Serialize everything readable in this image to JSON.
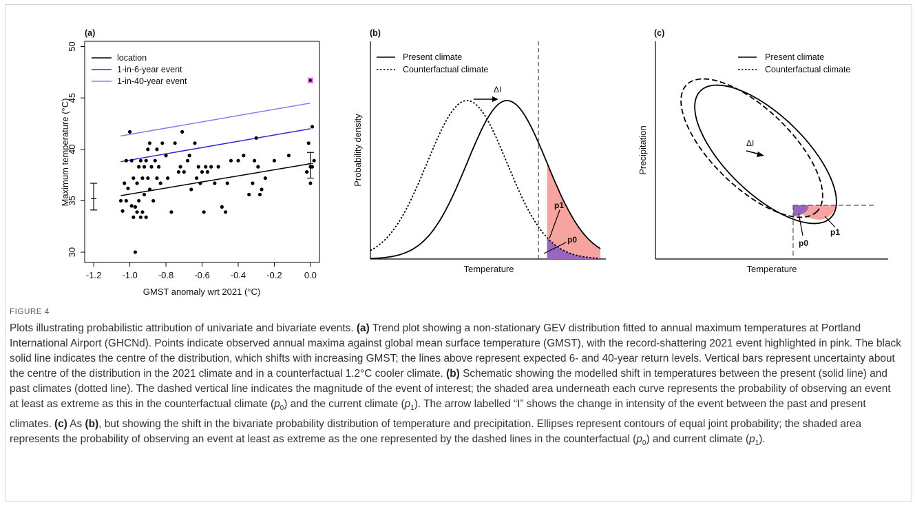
{
  "figure_label": "FIGURE 4",
  "caption": {
    "intro": "Plots illustrating probabilistic attribution of univariate and bivariate events.",
    "a_tag": "(a)",
    "a_text": "Trend plot showing a non-stationary GEV distribution fitted to annual maximum temperatures at Portland International Airport (GHCNd). Points indicate observed annual maxima against global mean surface temperature (GMST), with the record-shattering 2021 event highlighted in pink. The black solid line indicates the centre of the distribution, which shifts with increasing GMST; the lines above represent expected 6- and 40-year return levels. Vertical bars represent uncertainty about the centre of the distribution in the 2021 climate and in a counterfactual 1.2°C cooler climate.",
    "b_tag": "(b)",
    "b_text_1": "Schematic showing the modelled shift in temperatures between the present (solid line) and past climates (dotted line). The dashed vertical line indicates the magnitude of the event of interest; the shaded area underneath each curve represents the probability of observing an event at least as extreme as this in the counterfactual climate (",
    "b_text_2": ") and the current climate (",
    "b_text_3": "). The arrow labelled “I” shows the change in intensity of the event between the past and present climates.",
    "c_tag": "(c)",
    "c_text_1": "As",
    "c_ref": "(b)",
    "c_text_2": ", but showing the shift in the bivariate probability distribution of temperature and precipitation. Ellipses represent contours of equal joint probability; the shaded area represents the probability of observing an event at least as extreme as the one represented by the dashed lines in the counterfactual (",
    "c_text_3": ") and current climate (",
    "c_text_4": ").",
    "p_letter": "p",
    "sub0": "0",
    "sub1": "1"
  },
  "colors": {
    "blue": "#2b2bd6",
    "light_blue": "#8080f0",
    "pink_fill": "#f7a4a0",
    "purple_fill": "#9966bb",
    "highlight": "#d968d9"
  },
  "panels": {
    "a": {
      "tag": "(a)"
    },
    "b": {
      "tag": "(b)",
      "legend": [
        "Present climate",
        "Counterfactual climate"
      ],
      "xlabel": "Temperature",
      "ylabel": "Probability density",
      "shift_label": "ΔI",
      "p1": "p1",
      "p0": "p0"
    },
    "c": {
      "tag": "(c)",
      "legend": [
        "Present climate",
        "Counterfactual climate"
      ],
      "xlabel": "Temperature",
      "ylabel": "Precipitation",
      "shift_label": "ΔI",
      "p1": "p1",
      "p0": "p0"
    }
  },
  "chart_data": [
    {
      "panel": "a",
      "type": "scatter",
      "xlabel": "GMST anomaly wrt 2021 (°C)",
      "ylabel": "Maximum temperature (°C)",
      "xlim": [
        -1.25,
        0.05
      ],
      "ylim": [
        29,
        50.5
      ],
      "xticks": [
        -1.2,
        -1.0,
        -0.8,
        -0.6,
        -0.4,
        -0.2,
        0.0
      ],
      "xtick_labels": [
        "-1.2",
        "-1.0",
        "-0.8",
        "-0.6",
        "-0.4",
        "-0.2",
        "0.0"
      ],
      "yticks": [
        30,
        35,
        40,
        45,
        50
      ],
      "ytick_labels": [
        "30",
        "35",
        "40",
        "45",
        "50"
      ],
      "grid": false,
      "legend_position": "top-left",
      "series": [
        {
          "name": "location",
          "kind": "line",
          "color": "#000000",
          "x": [
            -1.05,
            0.0
          ],
          "y": [
            35.5,
            38.6
          ]
        },
        {
          "name": "1-in-6-year event",
          "kind": "line",
          "color": "#2b2bd6",
          "x": [
            -1.05,
            0.0
          ],
          "y": [
            38.8,
            42.0
          ]
        },
        {
          "name": "1-in-40-year event",
          "kind": "line",
          "color": "#8080f0",
          "x": [
            -1.05,
            0.0
          ],
          "y": [
            41.3,
            44.5
          ]
        }
      ],
      "points": {
        "x": [
          -1.05,
          -1.04,
          -1.03,
          -1.02,
          -1.02,
          -1.01,
          -1.0,
          -0.99,
          -0.99,
          -0.98,
          -0.98,
          -0.97,
          -0.97,
          -0.96,
          -0.96,
          -0.95,
          -0.95,
          -0.94,
          -0.94,
          -0.93,
          -0.93,
          -0.92,
          -0.92,
          -0.91,
          -0.91,
          -0.9,
          -0.9,
          -0.89,
          -0.89,
          -0.88,
          -0.87,
          -0.86,
          -0.85,
          -0.85,
          -0.84,
          -0.83,
          -0.82,
          -0.8,
          -0.79,
          -0.77,
          -0.75,
          -0.73,
          -0.72,
          -0.71,
          -0.7,
          -0.68,
          -0.67,
          -0.66,
          -0.64,
          -0.63,
          -0.62,
          -0.61,
          -0.6,
          -0.59,
          -0.58,
          -0.57,
          -0.55,
          -0.53,
          -0.51,
          -0.49,
          -0.47,
          -0.46,
          -0.44,
          -0.4,
          -0.37,
          -0.34,
          -0.32,
          -0.31,
          -0.3,
          -0.29,
          -0.28,
          -0.27,
          -0.25,
          -0.2,
          -0.12,
          -0.02,
          -0.01,
          0.0,
          0.0,
          0.01,
          0.01,
          0.02
        ],
        "y": [
          35.0,
          34.0,
          36.7,
          38.9,
          35.0,
          36.2,
          41.7,
          34.5,
          38.9,
          33.4,
          37.2,
          34.4,
          30.0,
          36.7,
          33.9,
          38.3,
          35.0,
          33.4,
          38.9,
          37.2,
          33.9,
          38.3,
          35.6,
          33.4,
          38.9,
          37.2,
          40.0,
          36.1,
          40.6,
          38.3,
          35.0,
          38.9,
          37.2,
          40.0,
          38.3,
          36.7,
          40.6,
          39.4,
          37.2,
          33.9,
          40.6,
          37.8,
          38.3,
          41.7,
          37.8,
          38.9,
          39.4,
          36.1,
          40.6,
          37.2,
          38.3,
          36.7,
          37.8,
          33.9,
          38.3,
          37.8,
          38.3,
          36.7,
          38.3,
          34.4,
          33.9,
          36.7,
          38.9,
          38.9,
          39.4,
          35.6,
          36.7,
          38.9,
          41.1,
          38.3,
          35.6,
          36.1,
          37.2,
          38.9,
          39.4,
          37.8,
          40.6,
          38.3,
          36.7,
          42.2,
          38.3,
          38.9
        ]
      },
      "highlight_point": {
        "x": 0.0,
        "y": 46.7,
        "label": "2021"
      },
      "uncertainty_bars": [
        {
          "x": -1.2,
          "y": 35.2,
          "low": 34.1,
          "high": 36.7
        },
        {
          "x": 0.0,
          "y": 38.6,
          "low": 37.2,
          "high": 39.7
        }
      ]
    },
    {
      "panel": "b",
      "type": "line",
      "xlabel": "Temperature",
      "ylabel": "Probability density",
      "series": [
        {
          "name": "Present climate",
          "style": "solid",
          "shape": "gaussian",
          "mean": 0.6,
          "sd": 0.6
        },
        {
          "name": "Counterfactual climate",
          "style": "dotted",
          "shape": "gaussian",
          "mean": 0.0,
          "sd": 0.6
        }
      ],
      "threshold": 1.2,
      "annotations": [
        "ΔI",
        "p1",
        "p0"
      ]
    },
    {
      "panel": "c",
      "type": "scatter",
      "xlabel": "Temperature",
      "ylabel": "Precipitation",
      "series": [
        {
          "name": "Present climate",
          "style": "solid",
          "shape": "ellipse"
        },
        {
          "name": "Counterfactual climate",
          "style": "dashed",
          "shape": "ellipse"
        }
      ],
      "annotations": [
        "ΔI",
        "p1",
        "p0"
      ]
    }
  ]
}
